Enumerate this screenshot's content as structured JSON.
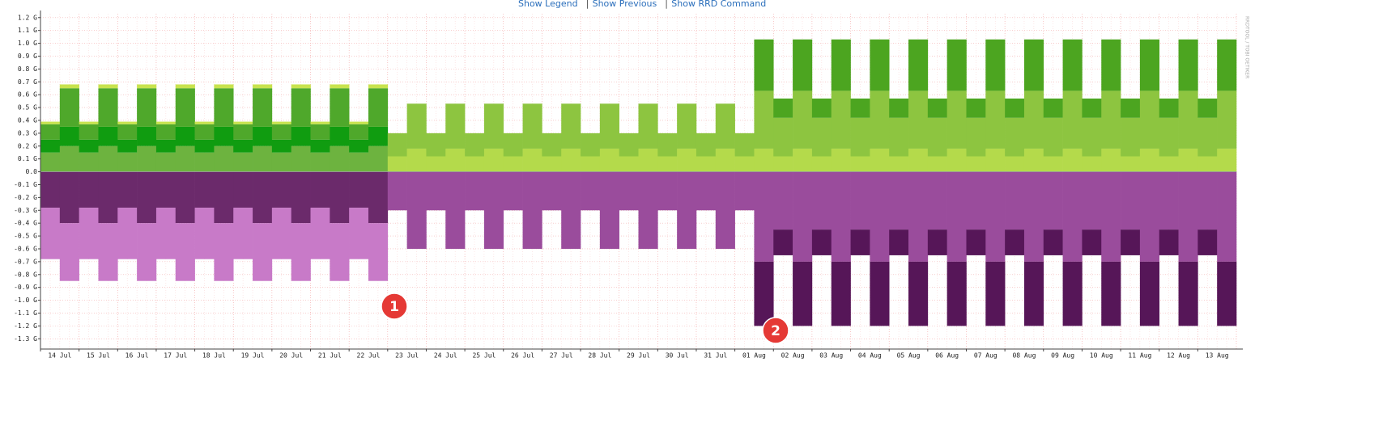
{
  "links": [
    "Show Legend",
    "Show Previous",
    "Show RRD Command"
  ],
  "separator": "|",
  "watermark": "RRDTOOL / TOBI OETIKER",
  "markers": [
    "1",
    "2"
  ],
  "chart_data": {
    "type": "area",
    "grid": true,
    "ylim": [
      -1.38,
      1.23
    ],
    "yticks": [
      {
        "value": 1.2,
        "label": "1.2 G"
      },
      {
        "value": 1.1,
        "label": "1.1 G"
      },
      {
        "value": 1.0,
        "label": "1.0 G"
      },
      {
        "value": 0.9,
        "label": "0.9 G"
      },
      {
        "value": 0.8,
        "label": "0.8 G"
      },
      {
        "value": 0.7,
        "label": "0.7 G"
      },
      {
        "value": 0.6,
        "label": "0.6 G"
      },
      {
        "value": 0.5,
        "label": "0.5 G"
      },
      {
        "value": 0.4,
        "label": "0.4 G"
      },
      {
        "value": 0.3,
        "label": "0.3 G"
      },
      {
        "value": 0.2,
        "label": "0.2 G"
      },
      {
        "value": 0.1,
        "label": "0.1 G"
      },
      {
        "value": 0,
        "label": "0.0"
      },
      {
        "value": -0.1,
        "label": "-0.1 G"
      },
      {
        "value": -0.2,
        "label": "-0.2 G"
      },
      {
        "value": -0.3,
        "label": "-0.3 G"
      },
      {
        "value": -0.4,
        "label": "-0.4 G"
      },
      {
        "value": -0.5,
        "label": "-0.5 G"
      },
      {
        "value": -0.6,
        "label": "-0.6 G"
      },
      {
        "value": -0.7,
        "label": "-0.7 G"
      },
      {
        "value": -0.8,
        "label": "-0.8 G"
      },
      {
        "value": -0.9,
        "label": "-0.9 G"
      },
      {
        "value": -1.0,
        "label": "-1.0 G"
      },
      {
        "value": -1.1,
        "label": "-1.1 G"
      },
      {
        "value": -1.2,
        "label": "-1.2 G"
      },
      {
        "value": -1.3,
        "label": "-1.3 G"
      }
    ],
    "categories": [
      "14 Jul",
      null,
      "15 Jul",
      null,
      "16 Jul",
      null,
      "17 Jul",
      null,
      "18 Jul",
      null,
      "19 Jul",
      null,
      "20 Jul",
      null,
      "21 Jul",
      null,
      "22 Jul",
      null,
      "23 Jul",
      null,
      "24 Jul",
      null,
      "25 Jul",
      null,
      "26 Jul",
      null,
      "27 Jul",
      null,
      "28 Jul",
      null,
      "29 Jul",
      null,
      "30 Jul",
      null,
      "31 Jul",
      null,
      "01 Aug",
      null,
      "02 Aug",
      null,
      "03 Aug",
      null,
      "04 Aug",
      null,
      "05 Aug",
      null,
      "06 Aug",
      null,
      "07 Aug",
      null,
      "08 Aug",
      null,
      "09 Aug",
      null,
      "10 Aug",
      null,
      "11 Aug",
      null,
      "12 Aug",
      null,
      "13 Aug",
      null
    ],
    "series": [
      {
        "color": "#6db33f",
        "values": [
          0.15,
          0.2,
          0.15,
          0.2,
          0.15,
          0.2,
          0.15,
          0.2,
          0.15,
          0.2,
          0.15,
          0.2,
          0.15,
          0.2,
          0.15,
          0.2,
          0.15,
          0.2,
          null,
          null,
          null,
          null,
          null,
          null,
          null,
          null,
          null,
          null,
          null,
          null,
          null,
          null,
          null,
          null,
          null,
          null,
          null,
          null,
          null,
          null,
          null,
          null,
          null,
          null,
          null,
          null,
          null,
          null,
          null,
          null,
          null,
          null,
          null,
          null,
          null,
          null,
          null,
          null,
          null,
          null,
          null,
          null
        ]
      },
      {
        "color": "#109c10",
        "values": [
          0.1,
          0.15,
          0.1,
          0.15,
          0.1,
          0.15,
          0.1,
          0.15,
          0.1,
          0.15,
          0.1,
          0.15,
          0.1,
          0.15,
          0.1,
          0.15,
          0.1,
          0.15,
          null,
          null,
          null,
          null,
          null,
          null,
          null,
          null,
          null,
          null,
          null,
          null,
          null,
          null,
          null,
          null,
          null,
          null,
          null,
          null,
          null,
          null,
          null,
          null,
          null,
          null,
          null,
          null,
          null,
          null,
          null,
          null,
          null,
          null,
          null,
          null,
          null,
          null,
          null,
          null,
          null,
          null,
          null,
          null
        ]
      },
      {
        "color": "#4fa82b",
        "values": [
          0.12,
          0.3,
          0.12,
          0.3,
          0.12,
          0.3,
          0.12,
          0.3,
          0.12,
          0.3,
          0.12,
          0.3,
          0.12,
          0.3,
          0.12,
          0.3,
          0.12,
          0.3,
          null,
          null,
          null,
          null,
          null,
          null,
          null,
          null,
          null,
          null,
          null,
          null,
          null,
          null,
          null,
          null,
          null,
          null,
          null,
          null,
          null,
          null,
          null,
          null,
          null,
          null,
          null,
          null,
          null,
          null,
          null,
          null,
          null,
          null,
          null,
          null,
          null,
          null,
          null,
          null,
          null,
          null,
          null,
          null
        ]
      },
      {
        "color": "#c8e34e",
        "values": [
          0.02,
          0.03,
          0.02,
          0.03,
          0.02,
          0.03,
          0.02,
          0.03,
          0.02,
          0.03,
          0.02,
          0.03,
          0.02,
          0.03,
          0.02,
          0.03,
          0.02,
          0.03,
          null,
          null,
          null,
          null,
          null,
          null,
          null,
          null,
          null,
          null,
          null,
          null,
          null,
          null,
          null,
          null,
          null,
          null,
          null,
          null,
          null,
          null,
          null,
          null,
          null,
          null,
          null,
          null,
          null,
          null,
          null,
          null,
          null,
          null,
          null,
          null,
          null,
          null,
          null,
          null,
          null,
          null,
          null,
          null
        ]
      },
      {
        "color": "#b4da4b",
        "values": [
          null,
          null,
          null,
          null,
          null,
          null,
          null,
          null,
          null,
          null,
          null,
          null,
          null,
          null,
          null,
          null,
          null,
          null,
          0.12,
          0.18,
          0.12,
          0.18,
          0.12,
          0.18,
          0.12,
          0.18,
          0.12,
          0.18,
          0.12,
          0.18,
          0.12,
          0.18,
          0.12,
          0.18,
          0.12,
          0.18,
          0.12,
          0.18,
          0.12,
          0.18,
          0.12,
          0.18,
          0.12,
          0.18,
          0.12,
          0.18,
          0.12,
          0.18,
          0.12,
          0.18,
          0.12,
          0.18,
          0.12,
          0.18,
          0.12,
          0.18,
          0.12,
          0.18,
          0.12,
          0.18,
          0.12,
          0.18
        ]
      },
      {
        "color": "#8dc540",
        "values": [
          null,
          null,
          null,
          null,
          null,
          null,
          null,
          null,
          null,
          null,
          null,
          null,
          null,
          null,
          null,
          null,
          null,
          null,
          0.18,
          0.35,
          0.18,
          0.35,
          0.18,
          0.35,
          0.18,
          0.35,
          0.18,
          0.35,
          0.18,
          0.35,
          0.18,
          0.35,
          0.18,
          0.35,
          0.18,
          0.35,
          0.18,
          0.45,
          0.3,
          0.45,
          0.3,
          0.45,
          0.3,
          0.45,
          0.3,
          0.45,
          0.3,
          0.45,
          0.3,
          0.45,
          0.3,
          0.45,
          0.3,
          0.45,
          0.3,
          0.45,
          0.3,
          0.45,
          0.3,
          0.45,
          0.3,
          0.45
        ]
      },
      {
        "color": "#4ca520",
        "values": [
          null,
          null,
          null,
          null,
          null,
          null,
          null,
          null,
          null,
          null,
          null,
          null,
          null,
          null,
          null,
          null,
          null,
          null,
          null,
          null,
          null,
          null,
          null,
          null,
          null,
          null,
          null,
          null,
          null,
          null,
          null,
          null,
          null,
          null,
          null,
          null,
          null,
          0.4,
          0.15,
          0.4,
          0.15,
          0.4,
          0.15,
          0.4,
          0.15,
          0.4,
          0.15,
          0.4,
          0.15,
          0.4,
          0.15,
          0.4,
          0.15,
          0.4,
          0.15,
          0.4,
          0.15,
          0.4,
          0.15,
          0.4,
          0.15,
          0.4
        ]
      },
      {
        "color": "#6b2a6b",
        "values": [
          -0.28,
          -0.4,
          -0.28,
          -0.4,
          -0.28,
          -0.4,
          -0.28,
          -0.4,
          -0.28,
          -0.4,
          -0.28,
          -0.4,
          -0.28,
          -0.4,
          -0.28,
          -0.4,
          -0.28,
          -0.4,
          null,
          null,
          null,
          null,
          null,
          null,
          null,
          null,
          null,
          null,
          null,
          null,
          null,
          null,
          null,
          null,
          null,
          null,
          null,
          null,
          null,
          null,
          null,
          null,
          null,
          null,
          null,
          null,
          null,
          null,
          null,
          null,
          null,
          null,
          null,
          null,
          null,
          null,
          null,
          null,
          null,
          null,
          null,
          null
        ]
      },
      {
        "color": "#c87ac8",
        "values": [
          -0.4,
          -0.45,
          -0.4,
          -0.45,
          -0.4,
          -0.45,
          -0.4,
          -0.45,
          -0.4,
          -0.45,
          -0.4,
          -0.45,
          -0.4,
          -0.45,
          -0.4,
          -0.45,
          -0.4,
          -0.45,
          null,
          null,
          null,
          null,
          null,
          null,
          null,
          null,
          null,
          null,
          null,
          null,
          null,
          null,
          null,
          null,
          null,
          null,
          null,
          null,
          null,
          null,
          null,
          null,
          null,
          null,
          null,
          null,
          null,
          null,
          null,
          null,
          null,
          null,
          null,
          null,
          null,
          null,
          null,
          null,
          null,
          null,
          null,
          null
        ]
      },
      {
        "color": "#9a4c9c",
        "values": [
          null,
          null,
          null,
          null,
          null,
          null,
          null,
          null,
          null,
          null,
          null,
          null,
          null,
          null,
          null,
          null,
          null,
          null,
          -0.3,
          -0.6,
          -0.3,
          -0.6,
          -0.3,
          -0.6,
          -0.3,
          -0.6,
          -0.3,
          -0.6,
          -0.3,
          -0.6,
          -0.3,
          -0.6,
          -0.3,
          -0.6,
          -0.3,
          -0.6,
          -0.3,
          -0.7,
          -0.45,
          -0.7,
          -0.45,
          -0.7,
          -0.45,
          -0.7,
          -0.45,
          -0.7,
          -0.45,
          -0.7,
          -0.45,
          -0.7,
          -0.45,
          -0.7,
          -0.45,
          -0.7,
          -0.45,
          -0.7,
          -0.45,
          -0.7,
          -0.45,
          -0.7,
          -0.45,
          -0.7
        ]
      },
      {
        "color": "#561658",
        "values": [
          null,
          null,
          null,
          null,
          null,
          null,
          null,
          null,
          null,
          null,
          null,
          null,
          null,
          null,
          null,
          null,
          null,
          null,
          null,
          null,
          null,
          null,
          null,
          null,
          null,
          null,
          null,
          null,
          null,
          null,
          null,
          null,
          null,
          null,
          null,
          null,
          null,
          -0.5,
          -0.2,
          -0.5,
          -0.2,
          -0.5,
          -0.2,
          -0.5,
          -0.2,
          -0.5,
          -0.2,
          -0.5,
          -0.2,
          -0.5,
          -0.2,
          -0.5,
          -0.2,
          -0.5,
          -0.2,
          -0.5,
          -0.2,
          -0.5,
          -0.2,
          -0.5,
          -0.2,
          -0.5
        ]
      }
    ]
  }
}
